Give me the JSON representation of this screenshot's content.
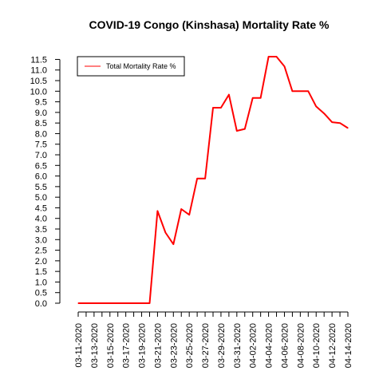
{
  "chart_data": {
    "type": "line",
    "title": "COVID-19 Congo (Kinshasa) Mortality Rate %",
    "xlabel": "",
    "ylabel": "",
    "x": [
      "03-11-2020",
      "03-12-2020",
      "03-13-2020",
      "03-14-2020",
      "03-15-2020",
      "03-16-2020",
      "03-17-2020",
      "03-18-2020",
      "03-19-2020",
      "03-20-2020",
      "03-21-2020",
      "03-22-2020",
      "03-23-2020",
      "03-24-2020",
      "03-25-2020",
      "03-26-2020",
      "03-27-2020",
      "03-28-2020",
      "03-29-2020",
      "03-30-2020",
      "03-31-2020",
      "04-01-2020",
      "04-02-2020",
      "04-03-2020",
      "04-04-2020",
      "04-05-2020",
      "04-06-2020",
      "04-07-2020",
      "04-08-2020",
      "04-09-2020",
      "04-10-2020",
      "04-11-2020",
      "04-12-2020",
      "04-13-2020",
      "04-14-2020"
    ],
    "x_tick_labels": [
      "03-11-2020",
      "03-13-2020",
      "03-15-2020",
      "03-17-2020",
      "03-19-2020",
      "03-21-2020",
      "03-23-2020",
      "03-25-2020",
      "03-27-2020",
      "03-29-2020",
      "03-31-2020",
      "04-02-2020",
      "04-04-2020",
      "04-06-2020",
      "04-08-2020",
      "04-10-2020",
      "04-12-2020",
      "04-14-2020"
    ],
    "series": [
      {
        "name": "Total Mortality Rate %",
        "color": "#ff0000",
        "values": [
          0,
          0,
          0,
          0,
          0,
          0,
          0,
          0,
          0,
          0,
          4.35,
          3.33,
          2.78,
          4.44,
          4.17,
          5.88,
          5.88,
          9.22,
          9.22,
          9.84,
          8.13,
          8.22,
          9.68,
          9.68,
          11.63,
          11.63,
          11.17,
          10.0,
          10.0,
          10.0,
          9.28,
          8.95,
          8.54,
          8.5,
          8.26
        ]
      }
    ],
    "y_ticks": [
      0.0,
      0.5,
      1.0,
      1.5,
      2.0,
      2.5,
      3.0,
      3.5,
      4.0,
      4.5,
      5.0,
      5.5,
      6.0,
      6.5,
      7.0,
      7.5,
      8.0,
      8.5,
      9.0,
      9.5,
      10.0,
      10.5,
      11.0,
      11.5
    ],
    "ylim": [
      0,
      11.63
    ],
    "grid": false,
    "legend_position": "top-left"
  }
}
